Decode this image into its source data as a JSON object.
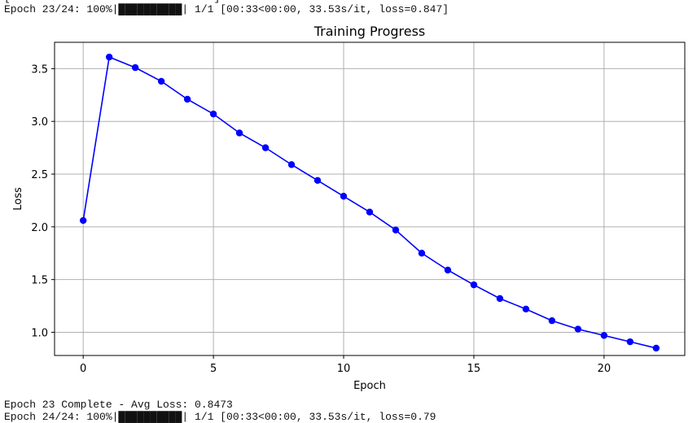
{
  "terminal": {
    "cut_top_line": "[                                ]",
    "progress_line": "Epoch 23/24: 100%|██████████| 1/1 [00:33<00:00, 33.53s/it, loss=0.847]",
    "complete_line": "Epoch 23 Complete - Avg Loss: 0.8473",
    "cut_bottom_line": "Epoch 24/24: 100%|██████████| 1/1 [00:33<00:00, 33.53s/it, loss=0.79"
  },
  "colors": {
    "line": "#0000ff",
    "grid": "#b0b0b0",
    "axes": "#000000"
  },
  "chart_data": {
    "type": "line",
    "title": "Training Progress",
    "xlabel": "Epoch",
    "ylabel": "Loss",
    "grid": true,
    "marker": "circle",
    "xlim": [
      -1.1,
      23.1
    ],
    "ylim": [
      0.78,
      3.75
    ],
    "xticks": [
      0,
      5,
      10,
      15,
      20
    ],
    "yticks": [
      1.0,
      1.5,
      2.0,
      2.5,
      3.0,
      3.5
    ],
    "ytick_labels": [
      "1.0",
      "1.5",
      "2.0",
      "2.5",
      "3.0",
      "3.5"
    ],
    "x": [
      0,
      1,
      2,
      3,
      4,
      5,
      6,
      7,
      8,
      9,
      10,
      11,
      12,
      13,
      14,
      15,
      16,
      17,
      18,
      19,
      20,
      21,
      22
    ],
    "y": [
      2.06,
      3.61,
      3.51,
      3.38,
      3.21,
      3.07,
      2.89,
      2.75,
      2.59,
      2.44,
      2.29,
      2.14,
      1.97,
      1.75,
      1.59,
      1.45,
      1.32,
      1.22,
      1.11,
      1.03,
      0.97,
      0.91,
      0.85
    ]
  }
}
